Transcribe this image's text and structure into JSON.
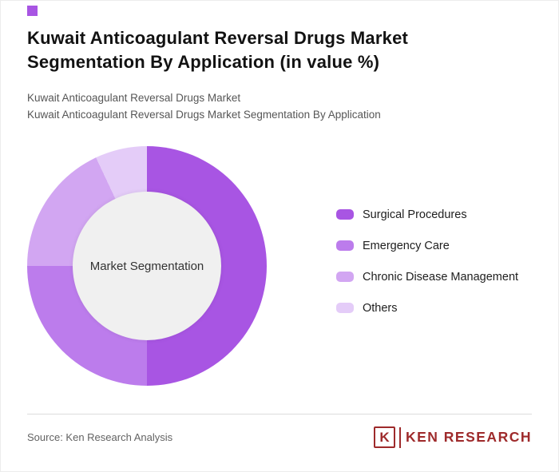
{
  "accent_color": "#a855e3",
  "header": {
    "title_line1": "Kuwait Anticoagulant Reversal Drugs Market",
    "title_line2": "Segmentation By Application (in value %)",
    "subtitle_line1": "Kuwait Anticoagulant Reversal Drugs Market",
    "subtitle_line2": "Kuwait Anticoagulant Reversal Drugs Market Segmentation By Application"
  },
  "chart_data": {
    "type": "pie",
    "donut": true,
    "title": "Kuwait Anticoagulant Reversal Drugs Market Segmentation By Application (in value %)",
    "center_label": "Market Segmentation",
    "categories": [
      "Surgical Procedures",
      "Emergency Care",
      "Chronic Disease Management",
      "Others"
    ],
    "values": [
      50,
      25,
      18,
      7
    ],
    "colors": [
      "#a855e3",
      "#bc7cec",
      "#d2a6f2",
      "#e4ccf8"
    ],
    "start_angle_deg": 0,
    "legend_position": "right"
  },
  "footer": {
    "source": "Source: Ken Research Analysis",
    "logo": {
      "letter": "K",
      "text": "KEN RESEARCH",
      "color": "#9e2a2b"
    }
  }
}
